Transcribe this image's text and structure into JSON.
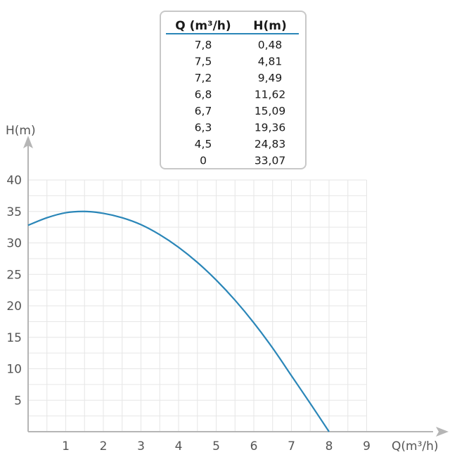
{
  "table": {
    "headers": [
      "Q (m³/h)",
      "H(m)"
    ],
    "rows": [
      [
        "7,8",
        "0,48"
      ],
      [
        "7,5",
        "4,81"
      ],
      [
        "7,2",
        "9,49"
      ],
      [
        "6,8",
        "11,62"
      ],
      [
        "6,7",
        "15,09"
      ],
      [
        "6,3",
        "19,36"
      ],
      [
        "4,5",
        "24,83"
      ],
      [
        "0",
        "33,07"
      ]
    ]
  },
  "chart_data": {
    "type": "line",
    "xlabel": "Q(m³/h)",
    "ylabel": "H(m)",
    "xlim": [
      0,
      10
    ],
    "ylim": [
      0,
      40
    ],
    "x_ticks": [
      1,
      2,
      3,
      4,
      5,
      6,
      7,
      8,
      9
    ],
    "y_ticks": [
      5,
      10,
      15,
      20,
      25,
      30,
      35,
      40
    ],
    "grid": true,
    "series": [
      {
        "color": "#2a86b8",
        "x": [
          0,
          0.5,
          1,
          1.5,
          2,
          2.5,
          3,
          3.5,
          4,
          4.5,
          5,
          5.5,
          6,
          6.5,
          7,
          7.5,
          8
        ],
        "y": [
          32.8,
          34.0,
          34.8,
          35.0,
          34.7,
          34.0,
          32.9,
          31.3,
          29.3,
          26.9,
          24.1,
          20.9,
          17.3,
          13.3,
          8.9,
          4.5,
          0
        ]
      }
    ]
  }
}
